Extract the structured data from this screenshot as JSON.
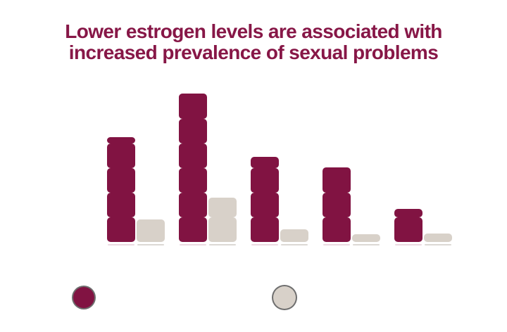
{
  "title": {
    "line1": "Lower estrogen levels are associated with",
    "line2": "increased prevalence of sexual problems"
  },
  "colors": {
    "title_text": "#871747",
    "bar_dark": "#811342",
    "bar_light": "#D8D1C9",
    "background": "#FFFFFF",
    "legend_ring": "#303030"
  },
  "chart_data": {
    "type": "bar",
    "subtype": "grouped bars built from stacked rounded blocks (1 block = 10 units)",
    "title": "Lower estrogen levels are associated with increased prevalence of sexual problems",
    "categories": [
      "group-1",
      "group-2",
      "group-3",
      "group-4",
      "group-5"
    ],
    "series": [
      {
        "name": "dark-maroon-bars",
        "color": "#811342",
        "values": [
          42.5,
          60,
          34.5,
          30,
          13.5
        ]
      },
      {
        "name": "light-beige-bars",
        "color": "#D8D1C9",
        "values": [
          9,
          18,
          5,
          3,
          3.5
        ]
      }
    ],
    "value_units": "estimated percent (no axis labels rendered; 1 stacked block = 10)",
    "block_unit_value": 10,
    "ylim": [
      0,
      62
    ],
    "axes_visible": false,
    "gridlines_visible": false,
    "category_labels_visible": false,
    "legend": {
      "position": "bottom",
      "entries": [
        {
          "swatch": "dark-maroon-dot",
          "color": "#811342",
          "label_text_visible": ""
        },
        {
          "swatch": "light-beige-dot",
          "color": "#D8D1C9",
          "label_text_visible": ""
        }
      ]
    }
  }
}
